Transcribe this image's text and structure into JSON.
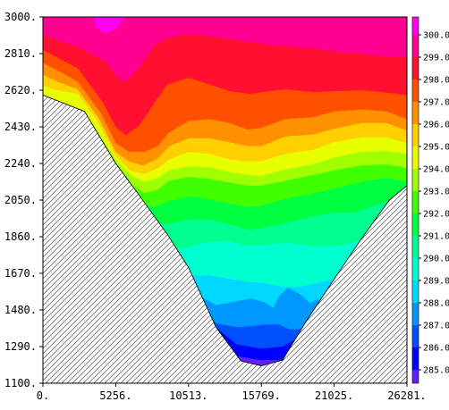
{
  "chart_data": {
    "type": "contour",
    "title": "",
    "xlabel": "",
    "ylabel": "",
    "xlim": [
      0,
      26281
    ],
    "ylim": [
      1100,
      3000
    ],
    "x_ticks": [
      "0.",
      "5256.",
      "10513.",
      "15769.",
      "21025.",
      "26281."
    ],
    "y_ticks": [
      "1100.",
      "1290.",
      "1480.",
      "1670.",
      "1860.",
      "2050.",
      "2240.",
      "2430.",
      "2620.",
      "2810.",
      "3000."
    ],
    "colorbar": {
      "ticks": [
        "285.0",
        "286.0",
        "287.0",
        "288.0",
        "289.0",
        "290.0",
        "291.0",
        "292.0",
        "293.0",
        "294.0",
        "295.0",
        "296.0",
        "297.0",
        "298.0",
        "299.0",
        "300.0"
      ],
      "range": [
        284.4,
        300.8
      ]
    },
    "levels": [
      285,
      286,
      287,
      288,
      289,
      290,
      291,
      292,
      293,
      294,
      295,
      296,
      297,
      298,
      299,
      300
    ],
    "level_colors": [
      "#6020ff",
      "#0000ff",
      "#0050ff",
      "#0098ff",
      "#00d8ff",
      "#00ffd0",
      "#00ff90",
      "#00ff40",
      "#40ff00",
      "#a0ff00",
      "#e8ff00",
      "#ffd000",
      "#ff9000",
      "#ff5000",
      "#ff1030",
      "#ff0090",
      "#ff00f0"
    ],
    "terrain": [
      [
        0,
        2595
      ],
      [
        3000,
        2510
      ],
      [
        5256,
        2240
      ],
      [
        7000,
        2070
      ],
      [
        9000,
        1870
      ],
      [
        10513,
        1700
      ],
      [
        12500,
        1390
      ],
      [
        14300,
        1215
      ],
      [
        15769,
        1190
      ],
      [
        17300,
        1220
      ],
      [
        19000,
        1420
      ],
      [
        21025,
        1640
      ],
      [
        23000,
        1850
      ],
      [
        25000,
        2050
      ],
      [
        26281,
        2125
      ]
    ],
    "isolines": [
      {
        "value": 299.5,
        "points": [
          [
            0,
            2975
          ],
          [
            1000,
            2955
          ],
          [
            2500,
            2915
          ],
          [
            4200,
            2900
          ],
          [
            5256,
            2930
          ],
          [
            6000,
            2970
          ],
          [
            6400,
            3000
          ],
          [
            19000,
            3000
          ],
          [
            21025,
            2975
          ],
          [
            23000,
            2955
          ],
          [
            25000,
            2935
          ],
          [
            26281,
            2920
          ]
        ]
      },
      {
        "value": 298.5,
        "points": [
          [
            0,
            2910
          ],
          [
            1000,
            2880
          ],
          [
            2500,
            2845
          ],
          [
            4500,
            2770
          ],
          [
            5256,
            2700
          ],
          [
            5900,
            2660
          ],
          [
            7000,
            2740
          ],
          [
            8000,
            2850
          ],
          [
            9000,
            2890
          ],
          [
            10513,
            2910
          ],
          [
            12000,
            2900
          ],
          [
            13500,
            2885
          ],
          [
            14800,
            2870
          ],
          [
            15769,
            2860
          ],
          [
            17500,
            2850
          ],
          [
            19500,
            2835
          ],
          [
            21025,
            2820
          ],
          [
            23000,
            2810
          ],
          [
            24500,
            2795
          ],
          [
            26281,
            2790
          ]
        ]
      },
      {
        "value": 297.5,
        "points": [
          [
            0,
            2830
          ],
          [
            1000,
            2790
          ],
          [
            2500,
            2735
          ],
          [
            4300,
            2560
          ],
          [
            5256,
            2430
          ],
          [
            6000,
            2385
          ],
          [
            7000,
            2440
          ],
          [
            8200,
            2570
          ],
          [
            9000,
            2650
          ],
          [
            10513,
            2685
          ],
          [
            12000,
            2650
          ],
          [
            13500,
            2615
          ],
          [
            15000,
            2600
          ],
          [
            15769,
            2610
          ],
          [
            17500,
            2625
          ],
          [
            19500,
            2610
          ],
          [
            21025,
            2615
          ],
          [
            23000,
            2620
          ],
          [
            24500,
            2610
          ],
          [
            26281,
            2595
          ]
        ]
      },
      {
        "value": 296.5,
        "points": [
          [
            0,
            2760
          ],
          [
            1000,
            2725
          ],
          [
            2500,
            2665
          ],
          [
            4200,
            2500
          ],
          [
            5256,
            2345
          ],
          [
            6200,
            2300
          ],
          [
            7300,
            2300
          ],
          [
            8300,
            2330
          ],
          [
            9100,
            2400
          ],
          [
            10513,
            2460
          ],
          [
            12000,
            2470
          ],
          [
            13500,
            2450
          ],
          [
            14800,
            2415
          ],
          [
            15769,
            2425
          ],
          [
            17500,
            2470
          ],
          [
            19500,
            2480
          ],
          [
            21025,
            2510
          ],
          [
            23000,
            2520
          ],
          [
            24800,
            2510
          ],
          [
            26281,
            2470
          ]
        ]
      },
      {
        "value": 295.5,
        "points": [
          [
            0,
            2700
          ],
          [
            1000,
            2665
          ],
          [
            2500,
            2625
          ],
          [
            4000,
            2480
          ],
          [
            5256,
            2300
          ],
          [
            6200,
            2250
          ],
          [
            7200,
            2230
          ],
          [
            8300,
            2265
          ],
          [
            9100,
            2330
          ],
          [
            10513,
            2370
          ],
          [
            12000,
            2370
          ],
          [
            13500,
            2350
          ],
          [
            14800,
            2330
          ],
          [
            15769,
            2330
          ],
          [
            17500,
            2380
          ],
          [
            19500,
            2390
          ],
          [
            21025,
            2420
          ],
          [
            23000,
            2450
          ],
          [
            24800,
            2450
          ],
          [
            26281,
            2410
          ]
        ]
      },
      {
        "value": 294.5,
        "points": [
          [
            0,
            2645
          ],
          [
            1000,
            2620
          ],
          [
            2500,
            2600
          ],
          [
            3800,
            2475
          ],
          [
            5256,
            2280
          ],
          [
            6300,
            2200
          ],
          [
            7300,
            2185
          ],
          [
            8300,
            2215
          ],
          [
            9100,
            2260
          ],
          [
            10513,
            2300
          ],
          [
            12000,
            2290
          ],
          [
            13500,
            2260
          ],
          [
            14800,
            2250
          ],
          [
            15769,
            2250
          ],
          [
            17500,
            2290
          ],
          [
            19500,
            2310
          ],
          [
            21025,
            2350
          ],
          [
            23000,
            2375
          ],
          [
            24800,
            2375
          ],
          [
            26281,
            2345
          ]
        ]
      },
      {
        "value": 293.5,
        "points": [
          [
            0,
            2595
          ],
          [
            3000,
            2510
          ],
          [
            5256,
            2260
          ],
          [
            6300,
            2180
          ],
          [
            7300,
            2145
          ],
          [
            8300,
            2165
          ],
          [
            9100,
            2205
          ],
          [
            10513,
            2225
          ],
          [
            12000,
            2220
          ],
          [
            13500,
            2195
          ],
          [
            14800,
            2180
          ],
          [
            15769,
            2175
          ],
          [
            17500,
            2210
          ],
          [
            19500,
            2235
          ],
          [
            21025,
            2270
          ],
          [
            23000,
            2300
          ],
          [
            24800,
            2305
          ],
          [
            26281,
            2290
          ]
        ]
      },
      {
        "value": 292.5,
        "points": [
          [
            5256,
            2240
          ],
          [
            6400,
            2130
          ],
          [
            7300,
            2085
          ],
          [
            8300,
            2105
          ],
          [
            9100,
            2150
          ],
          [
            10513,
            2170
          ],
          [
            12000,
            2160
          ],
          [
            13500,
            2140
          ],
          [
            14800,
            2125
          ],
          [
            15769,
            2125
          ],
          [
            17500,
            2150
          ],
          [
            19500,
            2180
          ],
          [
            21025,
            2205
          ],
          [
            23000,
            2230
          ],
          [
            24800,
            2235
          ],
          [
            26281,
            2215
          ]
        ]
      },
      {
        "value": 291.5,
        "points": [
          [
            6000,
            2180
          ],
          [
            7000,
            2040
          ],
          [
            8000,
            2010
          ],
          [
            9100,
            2045
          ],
          [
            10513,
            2070
          ],
          [
            12000,
            2055
          ],
          [
            13500,
            2030
          ],
          [
            14800,
            2015
          ],
          [
            15769,
            2020
          ],
          [
            17500,
            2055
          ],
          [
            19500,
            2085
          ],
          [
            21025,
            2110
          ],
          [
            23000,
            2145
          ],
          [
            24800,
            2165
          ],
          [
            26281,
            2145
          ]
        ]
      },
      {
        "value": 290.5,
        "points": [
          [
            7000,
            2070
          ],
          [
            8000,
            1930
          ],
          [
            9100,
            1925
          ],
          [
            10513,
            1950
          ],
          [
            12000,
            1950
          ],
          [
            13500,
            1925
          ],
          [
            14800,
            1895
          ],
          [
            15769,
            1905
          ],
          [
            17500,
            1930
          ],
          [
            19500,
            1965
          ],
          [
            21025,
            1985
          ],
          [
            22500,
            1985
          ],
          [
            25000,
            2050
          ]
        ]
      },
      {
        "value": 289.5,
        "points": [
          [
            8500,
            1830
          ],
          [
            9100,
            1790
          ],
          [
            10513,
            1805
          ],
          [
            12000,
            1835
          ],
          [
            13500,
            1835
          ],
          [
            14800,
            1810
          ],
          [
            15769,
            1815
          ],
          [
            17500,
            1830
          ],
          [
            19500,
            1810
          ],
          [
            21025,
            1810
          ],
          [
            22500,
            1830
          ],
          [
            23000,
            1850
          ]
        ]
      },
      {
        "value": 288.5,
        "points": [
          [
            9500,
            1770
          ],
          [
            10513,
            1660
          ],
          [
            12000,
            1660
          ],
          [
            13500,
            1640
          ],
          [
            15000,
            1625
          ],
          [
            16000,
            1620
          ],
          [
            17300,
            1600
          ],
          [
            18500,
            1600
          ],
          [
            19800,
            1620
          ],
          [
            21025,
            1640
          ]
        ]
      },
      {
        "value": 287.5,
        "points": [
          [
            10513,
            1700
          ],
          [
            11500,
            1545
          ],
          [
            12500,
            1505
          ],
          [
            14000,
            1525
          ],
          [
            15000,
            1540
          ],
          [
            16000,
            1520
          ],
          [
            16600,
            1490
          ],
          [
            17100,
            1555
          ],
          [
            17700,
            1595
          ],
          [
            18500,
            1565
          ],
          [
            19300,
            1515
          ],
          [
            19900,
            1540
          ]
        ]
      },
      {
        "value": 286.5,
        "points": [
          [
            11800,
            1475
          ],
          [
            12500,
            1410
          ],
          [
            14000,
            1390
          ],
          [
            15000,
            1395
          ],
          [
            16000,
            1405
          ],
          [
            17000,
            1405
          ],
          [
            17800,
            1380
          ],
          [
            18800,
            1380
          ],
          [
            19100,
            1420
          ]
        ]
      },
      {
        "value": 285.5,
        "points": [
          [
            12500,
            1390
          ],
          [
            14000,
            1300
          ],
          [
            15769,
            1280
          ],
          [
            17300,
            1290
          ],
          [
            18300,
            1330
          ]
        ]
      },
      {
        "value": 284.5,
        "points": [
          [
            14000,
            1240
          ],
          [
            15769,
            1220
          ],
          [
            17300,
            1220
          ],
          [
            17600,
            1260
          ]
        ]
      }
    ],
    "peak": {
      "value": 300.3,
      "points": [
        [
          3600,
          3000
        ],
        [
          3800,
          2945
        ],
        [
          4400,
          2915
        ],
        [
          5256,
          2935
        ],
        [
          5700,
          2975
        ],
        [
          5900,
          3000
        ]
      ]
    }
  }
}
